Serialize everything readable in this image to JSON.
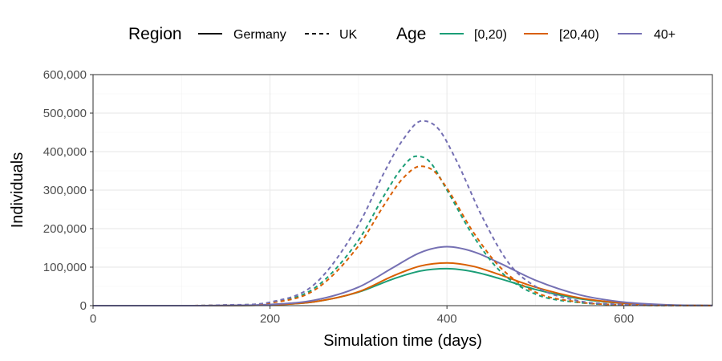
{
  "chart_data": {
    "type": "line",
    "xlabel": "Simulation time (days)",
    "ylabel": "Individuals",
    "xlim": [
      0,
      700
    ],
    "ylim": [
      0,
      600000
    ],
    "x_ticks": [
      0,
      200,
      400,
      600
    ],
    "x_tick_labels": [
      "0",
      "200",
      "400",
      "600"
    ],
    "y_ticks": [
      0,
      100000,
      200000,
      300000,
      400000,
      500000,
      600000
    ],
    "y_tick_labels": [
      "0",
      "100,000",
      "200,000",
      "300,000",
      "400,000",
      "500,000",
      "600,000"
    ],
    "grid": true,
    "legend_position": "top",
    "legend": {
      "region_title": "Region",
      "region_items": [
        {
          "label": "Germany",
          "dash": "solid"
        },
        {
          "label": "UK",
          "dash": "dashed"
        }
      ],
      "age_title": "Age",
      "age_items": [
        {
          "label": "[0,20)",
          "color": "#1b9e77"
        },
        {
          "label": "[20,40)",
          "color": "#d95f02"
        },
        {
          "label": "40+",
          "color": "#7570b3"
        }
      ]
    },
    "series": [
      {
        "region": "Germany",
        "age": "[0,20)",
        "color": "#1b9e77",
        "dash": "solid",
        "x": [
          0,
          100,
          150,
          200,
          250,
          300,
          340,
          370,
          400,
          430,
          460,
          500,
          550,
          600,
          650,
          700
        ],
        "y": [
          0,
          0,
          300,
          2000,
          10000,
          35000,
          70000,
          90000,
          96000,
          88000,
          70000,
          42000,
          18000,
          6000,
          1500,
          300
        ]
      },
      {
        "region": "Germany",
        "age": "[20,40)",
        "color": "#d95f02",
        "dash": "solid",
        "x": [
          0,
          100,
          150,
          200,
          250,
          300,
          340,
          370,
          400,
          430,
          460,
          500,
          550,
          600,
          650,
          700
        ],
        "y": [
          0,
          0,
          300,
          2000,
          10000,
          36000,
          78000,
          103000,
          111000,
          102000,
          80000,
          48000,
          20000,
          6500,
          1600,
          300
        ]
      },
      {
        "region": "Germany",
        "age": "40+",
        "color": "#7570b3",
        "dash": "solid",
        "x": [
          0,
          100,
          150,
          200,
          250,
          300,
          340,
          370,
          400,
          430,
          460,
          500,
          550,
          600,
          650,
          700
        ],
        "y": [
          0,
          0,
          400,
          3000,
          14000,
          48000,
          100000,
          138000,
          153000,
          140000,
          110000,
          66000,
          28000,
          9000,
          2000,
          400
        ]
      },
      {
        "region": "UK",
        "age": "[0,20)",
        "color": "#1b9e77",
        "dash": "dashed",
        "x": [
          0,
          100,
          150,
          200,
          250,
          300,
          330,
          350,
          365,
          380,
          400,
          430,
          460,
          500,
          550,
          600,
          650,
          700
        ],
        "y": [
          0,
          0,
          1500,
          8000,
          45000,
          170000,
          290000,
          360000,
          388000,
          375000,
          300000,
          180000,
          90000,
          30000,
          8000,
          2000,
          400,
          100
        ]
      },
      {
        "region": "UK",
        "age": "[20,40)",
        "color": "#d95f02",
        "dash": "dashed",
        "x": [
          0,
          100,
          150,
          200,
          250,
          300,
          330,
          350,
          370,
          385,
          400,
          430,
          460,
          500,
          550,
          600,
          650,
          700
        ],
        "y": [
          0,
          0,
          1500,
          7000,
          40000,
          155000,
          265000,
          330000,
          362000,
          350000,
          305000,
          190000,
          100000,
          35000,
          9000,
          2000,
          400,
          100
        ]
      },
      {
        "region": "UK",
        "age": "40+",
        "color": "#7570b3",
        "dash": "dashed",
        "x": [
          0,
          100,
          150,
          200,
          250,
          300,
          330,
          350,
          372,
          390,
          410,
          440,
          470,
          500,
          550,
          600,
          650,
          700
        ],
        "y": [
          0,
          0,
          1800,
          9000,
          55000,
          210000,
          350000,
          430000,
          480000,
          460000,
          380000,
          230000,
          110000,
          50000,
          12000,
          3000,
          600,
          100
        ]
      }
    ]
  }
}
